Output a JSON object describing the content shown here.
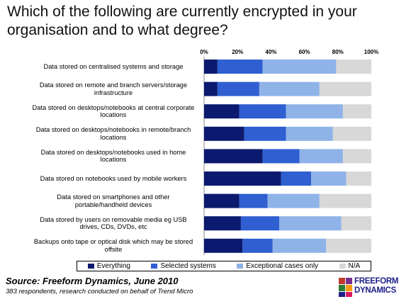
{
  "title": "Which of the following are currently encrypted in your organisation and to what degree?",
  "source": "Source: Freeform Dynamics, June 2010",
  "note": "383 respondents, research conducted on behalf of Trend Micro",
  "logo": {
    "line1": "FREEFORM",
    "line2": "DYNAMICS"
  },
  "colors": {
    "everything": "#0b1a6e",
    "selected": "#2f5fd0",
    "exceptional": "#8fb3e8",
    "na": "#d8d8d8"
  },
  "chart_data": {
    "type": "bar",
    "orientation": "horizontal",
    "stacked": true,
    "xlim": [
      0,
      100
    ],
    "ticks": [
      "0%",
      "20%",
      "40%",
      "60%",
      "80%",
      "100%"
    ],
    "categories": [
      "Data stored on centralised systems and storage",
      "Data stored on remote and branch servers/storage infrastructure",
      "Data stored on desktops/notebooks at central corporate locations",
      "Data stored on desktops/notebooks in remote/branch locations",
      "Data stored on desktops/notebooks used in home locations",
      "Data stored on notebooks used by mobile workers",
      "Data stored on smartphones and other portable/handheld devices",
      "Data stored by users on removable media eg USB drives, CDs, DVDs, etc",
      "Backups onto tape or optical disk which may be stored offsite"
    ],
    "series": [
      {
        "name": "Everything",
        "values": [
          8,
          8,
          21,
          24,
          35,
          46,
          21,
          22,
          23
        ]
      },
      {
        "name": "Selected systems",
        "values": [
          27,
          25,
          28,
          25,
          22,
          18,
          17,
          23,
          18
        ]
      },
      {
        "name": "Exceptional cases only",
        "values": [
          44,
          36,
          34,
          28,
          26,
          21,
          31,
          37,
          32
        ]
      },
      {
        "name": "N/A",
        "values": [
          21,
          31,
          17,
          23,
          17,
          15,
          31,
          18,
          27
        ]
      }
    ],
    "legend_position": "bottom",
    "grid": false
  }
}
